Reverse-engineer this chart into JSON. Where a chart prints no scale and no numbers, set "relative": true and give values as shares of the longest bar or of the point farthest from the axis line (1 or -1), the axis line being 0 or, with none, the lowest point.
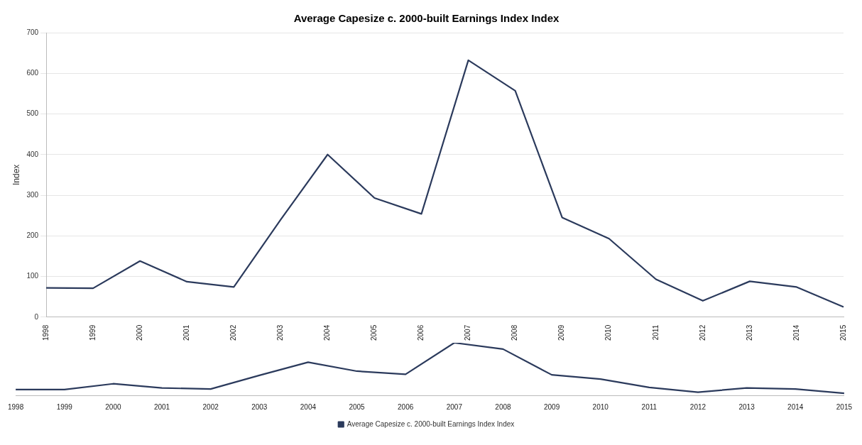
{
  "chart_data": [
    {
      "type": "line",
      "title": "Average Capesize c. 2000-built Earnings Index Index",
      "ylabel": "Index",
      "categories": [
        "1998",
        "1999",
        "2000",
        "2001",
        "2002",
        "2003",
        "2004",
        "2005",
        "2006",
        "2007",
        "2008",
        "2009",
        "2010",
        "2011",
        "2012",
        "2013",
        "2014",
        "2015"
      ],
      "series": [
        {
          "color": "#2b3a5c",
          "values": [
            72,
            71,
            138,
            87,
            74,
            240,
            400,
            293,
            254,
            632,
            557,
            245,
            193,
            93,
            40,
            88,
            74,
            25
          ]
        }
      ],
      "ylim": [
        0,
        700
      ],
      "yticks": [
        0,
        100,
        200,
        300,
        400,
        500,
        600,
        700
      ],
      "grid": "y",
      "marker": "none",
      "line_style": "solid",
      "legend": false
    },
    {
      "type": "line",
      "relative": true,
      "categories": [
        "1998",
        "1999",
        "2000",
        "2001",
        "2002",
        "2003",
        "2004",
        "2005",
        "2006",
        "2007",
        "2008",
        "2009",
        "2010",
        "2011",
        "2012",
        "2013",
        "2014",
        "2015"
      ],
      "series": [
        {
          "name": "Average Capesize c. 2000-built Earnings Index Index",
          "color": "#2b3a5c",
          "values": [
            0.11,
            0.11,
            0.22,
            0.14,
            0.12,
            0.38,
            0.63,
            0.46,
            0.4,
            1,
            0.88,
            0.39,
            0.31,
            0.15,
            0.06,
            0.14,
            0.12,
            0.04
          ]
        }
      ],
      "grid": false,
      "marker": "none",
      "line_style": "solid",
      "legend": "bottom"
    }
  ]
}
